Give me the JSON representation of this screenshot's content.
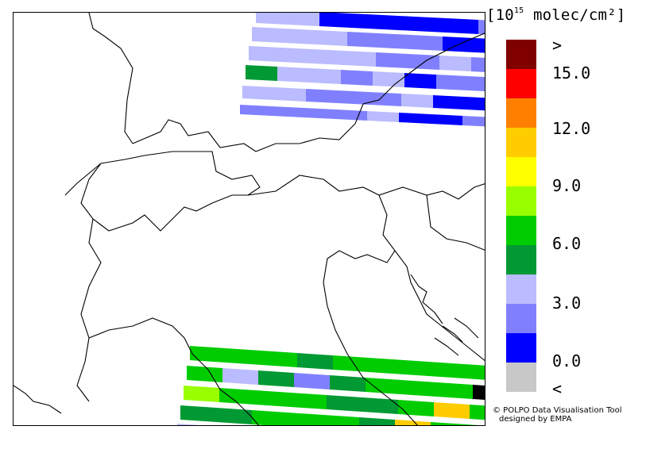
{
  "legend": {
    "unit_prefix": "[10",
    "unit_exp": "15",
    "unit_suffix": " molec/cm²]",
    "colors": [
      "#800000",
      "#ff0000",
      "#ff8000",
      "#ffcc00",
      "#ffff00",
      "#99ff00",
      "#00cc00",
      "#009933",
      "#bbbbff",
      "#8080ff",
      "#0000ff",
      "#c8c8c8"
    ],
    "ticks": [
      ">",
      "15.0",
      "12.0",
      "9.0",
      "6.0",
      "3.0",
      "0.0",
      "<"
    ]
  },
  "credit": {
    "line1": "© POLPO Data Visualisation Tool",
    "line2": "designed by EMPA"
  }
}
